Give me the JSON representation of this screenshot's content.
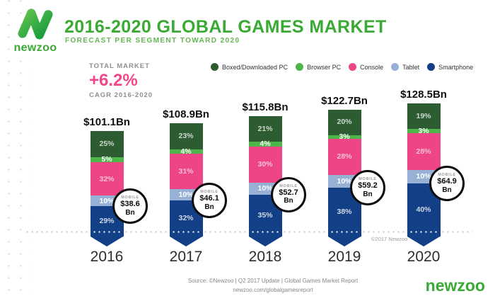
{
  "header": {
    "logo_text": "newzoo",
    "title": "2016-2020 GLOBAL GAMES MARKET",
    "subtitle": "FORECAST PER SEGMENT TOWARD 2020"
  },
  "total_market": {
    "label": "TOTAL MARKET",
    "value": "+6.2%",
    "sublabel": "CAGR 2016-2020"
  },
  "chart_data": {
    "type": "bar",
    "stacked": true,
    "title": "2016-2020 Global Games Market, forecast per segment toward 2020",
    "unit": "USD Bn",
    "legend_position": "top-right",
    "categories": [
      "2016",
      "2017",
      "2018",
      "2019",
      "2020"
    ],
    "totals_bn": [
      101.1,
      108.9,
      115.8,
      122.7,
      128.5
    ],
    "total_labels": [
      "$101.1Bn",
      "$108.9Bn",
      "$115.8Bn",
      "$122.7Bn",
      "$128.5Bn"
    ],
    "series": [
      {
        "name": "Boxed/Downloaded PC",
        "color": "#2d5c33",
        "label_color": "rgba(255,255,255,0.75)",
        "percentages": [
          25,
          23,
          21,
          20,
          19
        ]
      },
      {
        "name": "Browser PC",
        "color": "#4cb648",
        "label_color": "#ffffff",
        "percentages": [
          5,
          4,
          4,
          3,
          3
        ]
      },
      {
        "name": "Console",
        "color": "#ee4586",
        "label_color": "rgba(255,255,255,0.65)",
        "percentages": [
          32,
          31,
          30,
          28,
          28
        ]
      },
      {
        "name": "Tablet",
        "color": "#97b0d6",
        "label_color": "#ffffff",
        "percentages": [
          10,
          10,
          10,
          10,
          10
        ]
      },
      {
        "name": "Smartphone",
        "color": "#123f85",
        "label_color": "rgba(255,255,255,0.8)",
        "percentages": [
          29,
          32,
          35,
          38,
          40
        ]
      }
    ],
    "mobile_callouts": [
      {
        "label": "MOBILE",
        "value": "$38.6",
        "unit": "Bn"
      },
      {
        "label": "MOBILE",
        "value": "$46.1",
        "unit": "Bn"
      },
      {
        "label": "MOBILE",
        "value": "$52.7",
        "unit": "Bn"
      },
      {
        "label": "MOBILE",
        "value": "$59.2",
        "unit": "Bn"
      },
      {
        "label": "MOBILE",
        "value": "$64.9",
        "unit": "Bn"
      }
    ]
  },
  "footer": {
    "copyright": "©2017 Newzoo",
    "source_line1": "Source: ©Newzoo | Q2 2017 Update | Global Games Market Report",
    "source_line2": "newzoo.com/globalgamesreport",
    "brand": "newzoo"
  },
  "colors": {
    "brand_green": "#3aaa35",
    "accent_pink": "#f0478c"
  }
}
